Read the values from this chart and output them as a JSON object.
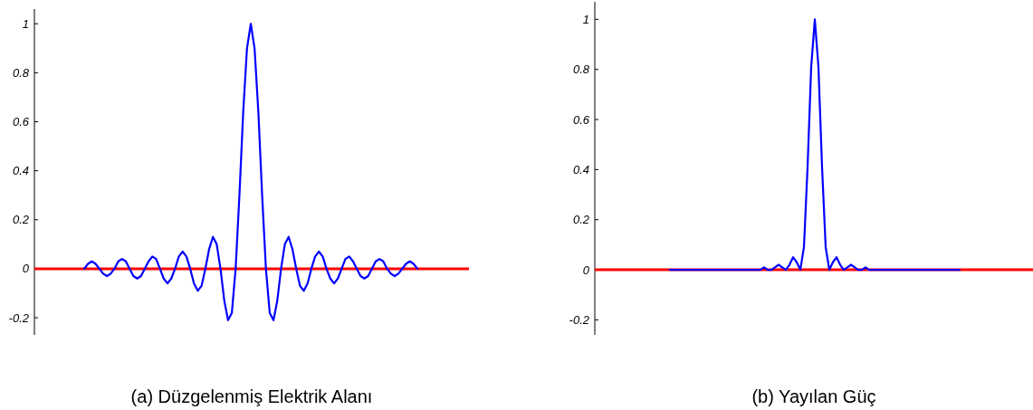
{
  "chart_data": [
    {
      "type": "line",
      "title": "(a) Düzgelenmiş Elektrik Alanı",
      "tick_labels": "y",
      "line_style": "solid",
      "ylim": [
        -0.27,
        1.06
      ],
      "yticks": [
        -0.2,
        0,
        0.2,
        0.4,
        0.6,
        0.8,
        1
      ],
      "ref_lines": [
        {
          "axis": "y",
          "value": 0,
          "color": "#ff0000"
        }
      ],
      "categories": [
        null,
        null,
        null,
        null,
        null,
        null,
        null,
        null,
        null,
        null,
        null,
        null,
        null,
        null,
        null,
        null,
        null,
        null,
        null,
        null,
        null,
        null,
        null,
        null,
        null,
        null,
        null,
        null,
        null,
        null,
        null,
        null,
        null,
        null,
        null,
        null,
        null,
        null,
        null,
        null,
        null,
        null,
        null,
        null,
        null,
        null,
        null,
        null,
        null,
        null,
        null,
        null,
        null,
        null,
        null,
        null,
        null,
        null,
        null,
        null,
        null,
        null,
        null,
        null,
        null,
        null,
        null,
        null,
        null,
        null,
        null,
        null,
        null,
        null,
        null,
        null,
        null,
        null,
        null,
        null,
        null,
        null,
        null,
        null,
        null,
        null,
        null,
        null,
        null
      ],
      "series": [
        {
          "color": "#0000ff",
          "values": [
            0,
            0.02,
            0.03,
            0.02,
            0,
            -0.02,
            -0.03,
            -0.02,
            0,
            0.03,
            0.04,
            0.03,
            0,
            -0.03,
            -0.04,
            -0.03,
            0,
            0.03,
            0.05,
            0.04,
            0,
            -0.04,
            -0.06,
            -0.04,
            0,
            0.05,
            0.07,
            0.05,
            0,
            -0.06,
            -0.09,
            -0.07,
            0,
            0.08,
            0.13,
            0.1,
            0,
            -0.13,
            -0.21,
            -0.18,
            0,
            0.3,
            0.64,
            0.9,
            1,
            0.9,
            0.64,
            0.3,
            0,
            -0.18,
            -0.21,
            -0.13,
            0,
            0.1,
            0.13,
            0.08,
            0,
            -0.07,
            -0.09,
            -0.06,
            0,
            0.05,
            0.07,
            0.05,
            0,
            -0.04,
            -0.06,
            -0.04,
            0,
            0.04,
            0.05,
            0.03,
            0,
            -0.03,
            -0.04,
            -0.03,
            0,
            0.03,
            0.04,
            0.03,
            0,
            -0.02,
            -0.03,
            -0.02,
            0,
            0.02,
            0.03,
            0.02,
            0
          ]
        }
      ]
    },
    {
      "type": "line",
      "title": "(b) Yayılan Güç",
      "tick_labels": "y",
      "line_style": "solid",
      "ylim": [
        -0.26,
        1.07
      ],
      "yticks": [
        -0.2,
        0,
        0.2,
        0.4,
        0.6,
        0.8,
        1
      ],
      "ref_lines": [
        {
          "axis": "y",
          "value": 0,
          "color": "#ff0000"
        }
      ],
      "categories": [
        null,
        null,
        null,
        null,
        null,
        null,
        null,
        null,
        null,
        null,
        null,
        null,
        null,
        null,
        null,
        null,
        null,
        null,
        null,
        null,
        null,
        null,
        null,
        null,
        null,
        null,
        null,
        null,
        null,
        null,
        null,
        null,
        null,
        null,
        null,
        null,
        null,
        null,
        null,
        null,
        null,
        null,
        null,
        null,
        null,
        null,
        null,
        null,
        null,
        null,
        null,
        null,
        null,
        null,
        null,
        null,
        null,
        null,
        null,
        null,
        null,
        null,
        null,
        null,
        null,
        null,
        null,
        null,
        null,
        null,
        null,
        null,
        null,
        null,
        null,
        null,
        null,
        null,
        null,
        null,
        null
      ],
      "series": [
        {
          "color": "#0000ff",
          "values": [
            0,
            0,
            0,
            0,
            0,
            0,
            0,
            0,
            0,
            0,
            0,
            0,
            0,
            0,
            0,
            0,
            0,
            0,
            0,
            0,
            0,
            0,
            0,
            0,
            0,
            0,
            0.01,
            0,
            0,
            0.01,
            0.02,
            0.01,
            0,
            0.02,
            0.05,
            0.03,
            0,
            0.09,
            0.41,
            0.81,
            1,
            0.81,
            0.41,
            0.09,
            0,
            0.03,
            0.05,
            0.02,
            0,
            0.01,
            0.02,
            0.01,
            0,
            0,
            0.01,
            0,
            0,
            0,
            0,
            0,
            0,
            0,
            0,
            0,
            0,
            0,
            0,
            0,
            0,
            0,
            0,
            0,
            0,
            0,
            0,
            0,
            0,
            0,
            0,
            0,
            0
          ]
        }
      ]
    }
  ]
}
